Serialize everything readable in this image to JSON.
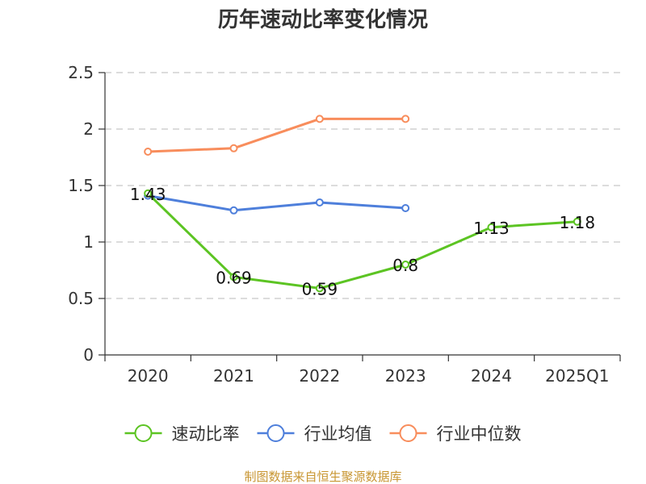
{
  "chart_data": {
    "type": "line",
    "title": "历年速动比率变化情况",
    "categories": [
      "2020",
      "2021",
      "2022",
      "2023",
      "2024",
      "2025Q1"
    ],
    "ylim": [
      0,
      2.5
    ],
    "yticks": [
      0,
      0.5,
      1,
      1.5,
      2,
      2.5
    ],
    "ytick_labels": [
      "0",
      "0.5",
      "1",
      "1.5",
      "2",
      "2.5"
    ],
    "grid": true,
    "legend_position": "bottom",
    "series": [
      {
        "name": "速动比率",
        "color": "#5cc423",
        "values": [
          1.43,
          0.69,
          0.59,
          0.8,
          1.13,
          1.18
        ],
        "labels": [
          "1.43",
          "0.69",
          "0.59",
          "0.8",
          "1.13",
          "1.18"
        ]
      },
      {
        "name": "行业均值",
        "color": "#4e7fdb",
        "values": [
          1.41,
          1.28,
          1.35,
          1.3,
          null,
          null
        ]
      },
      {
        "name": "行业中位数",
        "color": "#f88d5c",
        "values": [
          1.8,
          1.83,
          2.09,
          2.09,
          null,
          null
        ]
      }
    ]
  },
  "source_text": "制图数据来自恒生聚源数据库",
  "source_color": "#c89632"
}
